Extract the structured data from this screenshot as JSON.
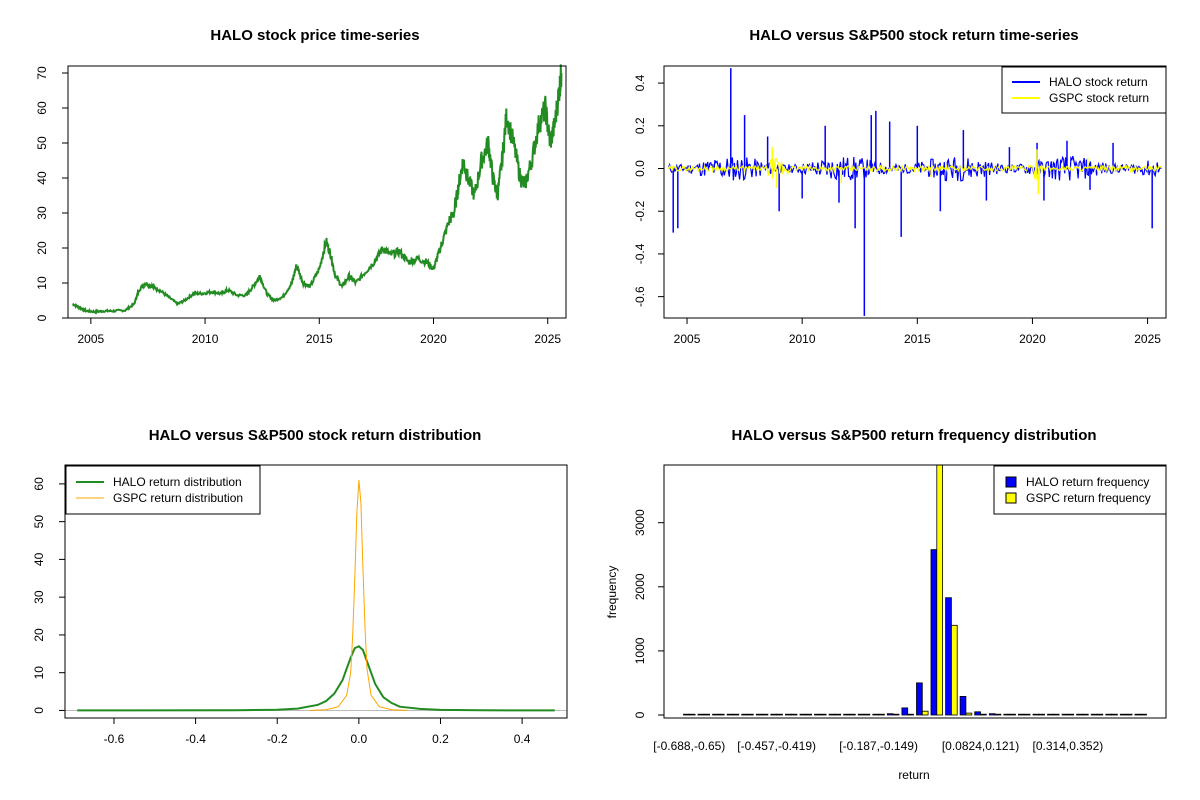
{
  "chart_data": [
    {
      "type": "line",
      "title": "HALO stock price time-series",
      "xlabel": "",
      "ylabel": "",
      "xlim": [
        2004.0,
        2025.8
      ],
      "ylim": [
        0,
        72
      ],
      "x_ticks": [
        2005,
        2010,
        2015,
        2020,
        2025
      ],
      "y_ticks": [
        0,
        10,
        20,
        30,
        40,
        50,
        60,
        70
      ],
      "series_color": "#228B22",
      "series": [
        {
          "x": [
            2004.2,
            2004.5,
            2004.8,
            2005.2,
            2005.6,
            2006.0,
            2006.5,
            2006.9,
            2007.1,
            2007.4,
            2007.7,
            2008.0,
            2008.4,
            2008.8,
            2009.1,
            2009.5,
            2009.9,
            2010.3,
            2010.7,
            2011.0,
            2011.4,
            2011.8,
            2012.1,
            2012.4,
            2012.7,
            2013.0,
            2013.4,
            2013.8,
            2014.0,
            2014.3,
            2014.6,
            2015.0,
            2015.3,
            2015.5,
            2015.7,
            2016.0,
            2016.3,
            2016.6,
            2017.0,
            2017.4,
            2017.8,
            2018.1,
            2018.5,
            2018.9,
            2019.3,
            2019.7,
            2020.0,
            2020.2,
            2020.4,
            2020.7,
            2020.9,
            2021.1,
            2021.3,
            2021.5,
            2021.8,
            2022.1,
            2022.4,
            2022.6,
            2022.8,
            2023.0,
            2023.2,
            2023.5,
            2023.8,
            2024.0,
            2024.3,
            2024.6,
            2024.9,
            2025.1,
            2025.3,
            2025.5,
            2025.6
          ],
          "y": [
            4,
            3,
            2,
            1.8,
            2,
            2,
            2.2,
            4,
            8,
            10,
            9,
            8,
            6,
            4,
            5,
            7,
            7,
            7.5,
            7,
            8,
            6.5,
            6.5,
            9,
            12,
            7,
            5,
            6,
            10,
            15,
            10,
            9,
            14,
            22,
            18,
            12,
            9,
            12,
            10,
            13,
            16,
            20,
            18,
            19,
            16,
            17,
            16,
            14,
            18,
            22,
            28,
            30,
            38,
            45,
            40,
            35,
            45,
            50,
            40,
            35,
            45,
            58,
            50,
            40,
            38,
            45,
            55,
            60,
            50,
            55,
            65,
            70
          ]
        }
      ]
    },
    {
      "type": "line",
      "title": "HALO versus S&P500 stock return time-series",
      "xlabel": "",
      "ylabel": "",
      "xlim": [
        2004.0,
        2025.8
      ],
      "ylim": [
        -0.7,
        0.48
      ],
      "x_ticks": [
        2005,
        2010,
        2015,
        2020,
        2025
      ],
      "y_ticks": [
        -0.6,
        -0.4,
        -0.2,
        0.0,
        0.2,
        0.4
      ],
      "legend": "top-right",
      "series": [
        {
          "name": "HALO stock return",
          "color": "#0000FF",
          "spikes": [
            [
              2004.4,
              -0.3
            ],
            [
              2004.6,
              -0.28
            ],
            [
              2006.9,
              0.47
            ],
            [
              2007.5,
              0.25
            ],
            [
              2008.5,
              0.15
            ],
            [
              2009.0,
              -0.2
            ],
            [
              2010.0,
              -0.14
            ],
            [
              2011.0,
              0.2
            ],
            [
              2011.6,
              -0.16
            ],
            [
              2012.3,
              -0.28
            ],
            [
              2012.7,
              -0.69
            ],
            [
              2013.0,
              0.25
            ],
            [
              2013.2,
              0.27
            ],
            [
              2013.8,
              0.22
            ],
            [
              2014.3,
              -0.32
            ],
            [
              2015.0,
              0.2
            ],
            [
              2016.0,
              -0.2
            ],
            [
              2017.0,
              0.18
            ],
            [
              2018.0,
              -0.15
            ],
            [
              2019.0,
              0.1
            ],
            [
              2020.2,
              0.12
            ],
            [
              2020.5,
              -0.15
            ],
            [
              2021.5,
              0.13
            ],
            [
              2022.5,
              -0.1
            ],
            [
              2023.5,
              0.12
            ],
            [
              2025.2,
              -0.28
            ]
          ]
        },
        {
          "name": "GSPC stock return",
          "color": "#FFFF00",
          "spikes": [
            [
              2008.7,
              0.1
            ],
            [
              2008.9,
              -0.09
            ],
            [
              2011.7,
              -0.07
            ],
            [
              2015.6,
              -0.04
            ],
            [
              2020.2,
              0.09
            ],
            [
              2020.25,
              -0.12
            ],
            [
              2022.4,
              0.05
            ]
          ]
        }
      ]
    },
    {
      "type": "line",
      "title": "HALO versus S&P500 stock return distribution",
      "xlabel": "",
      "ylabel": "",
      "xlim": [
        -0.72,
        0.51
      ],
      "ylim": [
        -2,
        65
      ],
      "x_ticks": [
        -0.6,
        -0.4,
        -0.2,
        0.0,
        0.2,
        0.4
      ],
      "y_ticks": [
        0,
        10,
        20,
        30,
        40,
        50,
        60
      ],
      "legend": "top-left",
      "series": [
        {
          "name": "HALO return distribution",
          "color": "#228B22",
          "x": [
            -0.69,
            -0.3,
            -0.2,
            -0.15,
            -0.1,
            -0.08,
            -0.06,
            -0.04,
            -0.03,
            -0.02,
            -0.01,
            0.0,
            0.01,
            0.02,
            0.03,
            0.04,
            0.06,
            0.08,
            0.1,
            0.15,
            0.2,
            0.3,
            0.48
          ],
          "y": [
            0,
            0.05,
            0.2,
            0.5,
            1.5,
            2.5,
            4.5,
            8,
            11,
            14,
            16.5,
            17,
            16,
            13,
            10,
            7,
            3.5,
            2,
            1,
            0.4,
            0.15,
            0.05,
            0
          ]
        },
        {
          "name": "GSPC return distribution",
          "color": "#FFA500",
          "x": [
            -0.12,
            -0.08,
            -0.05,
            -0.03,
            -0.02,
            -0.015,
            -0.01,
            -0.005,
            0.0,
            0.005,
            0.01,
            0.015,
            0.02,
            0.03,
            0.05,
            0.08,
            0.12
          ],
          "y": [
            0,
            0.2,
            1,
            4,
            10,
            20,
            35,
            52,
            61,
            55,
            38,
            22,
            11,
            4,
            1,
            0.2,
            0
          ]
        }
      ]
    },
    {
      "type": "bar",
      "title": "HALO versus S&P500 return frequency distribution",
      "xlabel": "return",
      "ylabel": "frequency",
      "ylim": [
        0,
        3900
      ],
      "y_ticks": [
        0,
        1000,
        2000,
        3000
      ],
      "x_tick_labels": [
        "[-0.688,-0.65)",
        "[-0.457,-0.419)",
        "[-0.187,-0.149)",
        "[0.0824,0.121)",
        "[0.314,0.352)"
      ],
      "x_tick_label_bins": [
        0,
        6,
        13,
        20,
        26
      ],
      "legend": "top-right",
      "series": [
        {
          "name": "HALO return frequency",
          "color": "#0000FF",
          "values": [
            1,
            1,
            1,
            1,
            1,
            1,
            1,
            1,
            1,
            1,
            2,
            3,
            5,
            10,
            20,
            110,
            500,
            2580,
            1830,
            290,
            50,
            20,
            10,
            5,
            3,
            2,
            2,
            1,
            1,
            1,
            1,
            1
          ]
        },
        {
          "name": "GSPC return frequency",
          "color": "#FFFF00",
          "values": [
            0,
            0,
            0,
            0,
            0,
            0,
            0,
            0,
            0,
            0,
            0,
            0,
            0,
            0,
            0,
            2,
            60,
            3900,
            1400,
            30,
            5,
            0,
            0,
            0,
            0,
            0,
            0,
            0,
            0,
            0,
            0,
            0
          ]
        }
      ]
    }
  ]
}
